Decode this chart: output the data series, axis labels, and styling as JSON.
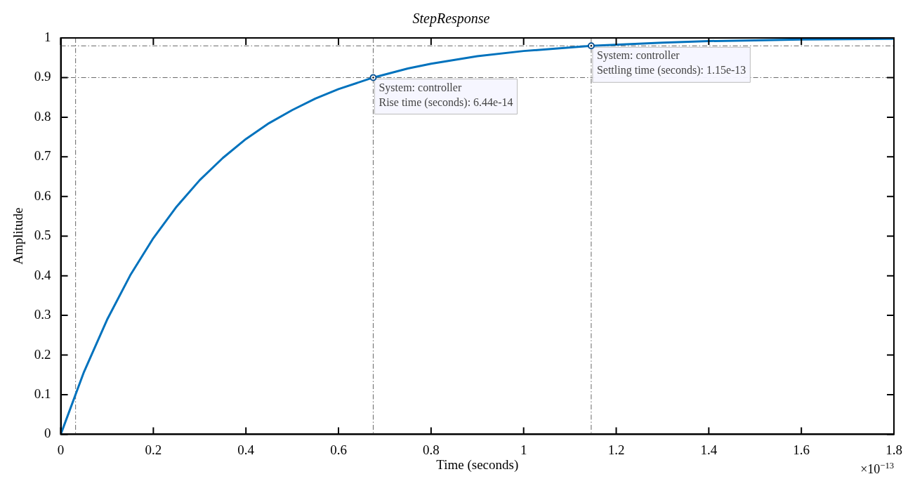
{
  "chart_data": {
    "type": "line",
    "title": "StepResponse",
    "xlabel": "Time (seconds)",
    "ylabel": "Amplitude",
    "x": [
      0,
      0.05,
      0.1,
      0.15,
      0.2,
      0.25,
      0.3,
      0.35,
      0.4,
      0.45,
      0.5,
      0.55,
      0.6,
      0.675,
      0.75,
      0.8,
      0.9,
      1.0,
      1.146,
      1.3,
      1.4,
      1.5,
      1.6,
      1.8
    ],
    "series": [
      {
        "color": "#0072bd",
        "values": [
          0,
          0.157,
          0.289,
          0.401,
          0.495,
          0.574,
          0.641,
          0.697,
          0.745,
          0.785,
          0.818,
          0.847,
          0.871,
          0.9,
          0.923,
          0.935,
          0.954,
          0.967,
          0.98,
          0.988,
          0.992,
          0.994,
          0.996,
          0.998
        ]
      }
    ],
    "xlim": [
      0,
      1.8
    ],
    "xticks": [
      0,
      0.2,
      0.4,
      0.6,
      0.8,
      1,
      1.2,
      1.4,
      1.6,
      1.8
    ],
    "ylim": [
      0,
      1
    ],
    "yticks": [
      0,
      0.1,
      0.2,
      0.3,
      0.4,
      0.5,
      0.6,
      0.7,
      0.8,
      0.9,
      1
    ],
    "grid": false,
    "legend": false,
    "marker": "none",
    "line_style": "solid",
    "ref_lines": [
      {
        "axis": "y",
        "value": 0.9,
        "color": "#666666",
        "line_style": "dashed"
      },
      {
        "axis": "y",
        "value": 0.98,
        "color": "#666666",
        "line_style": "dashed"
      },
      {
        "axis": "x",
        "value": 0.032,
        "color": "#666666",
        "line_style": "dashed"
      },
      {
        "axis": "x",
        "value": 0.675,
        "color": "#666666",
        "line_style": "dashed"
      },
      {
        "axis": "x",
        "value": 1.146,
        "color": "#666666",
        "line_style": "dashed"
      }
    ],
    "annotations": [
      {
        "text": "System: controller\nRise time (seconds): 6.44e-14",
        "x": 0.675,
        "y": 0.9
      },
      {
        "text": "System: controller\nSettling time (seconds): 1.15e-13",
        "x": 1.146,
        "y": 0.98
      },
      "×10$^{−13}$"
    ]
  }
}
